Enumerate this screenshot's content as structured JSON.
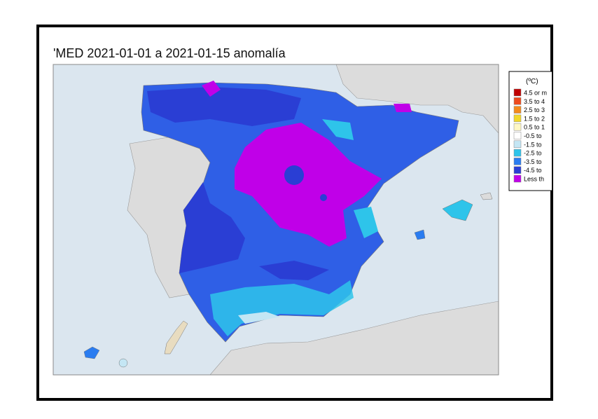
{
  "map": {
    "title": "'MED   2021-01-01 a 2021-01-15  anomalía",
    "legend": {
      "unit": "(ºC)",
      "items": [
        {
          "label": "4.5 or m",
          "color": "#c00000"
        },
        {
          "label": "3.5 to 4",
          "color": "#ee4a1e"
        },
        {
          "label": "2.5 to 3",
          "color": "#f48a1c"
        },
        {
          "label": "1.5 to 2",
          "color": "#f2d82a"
        },
        {
          "label": "0.5 to 1",
          "color": "#fff8c4"
        },
        {
          "label": "-0.5 to",
          "color": "#ffffff"
        },
        {
          "label": "-1.5 to",
          "color": "#c4e6f4"
        },
        {
          "label": "-2.5 to",
          "color": "#2ec4ea"
        },
        {
          "label": "-3.5 to",
          "color": "#2a7cf0"
        },
        {
          "label": "-4.5 to",
          "color": "#2a3ed4"
        },
        {
          "label": "Less th",
          "color": "#c000e8"
        }
      ]
    }
  }
}
